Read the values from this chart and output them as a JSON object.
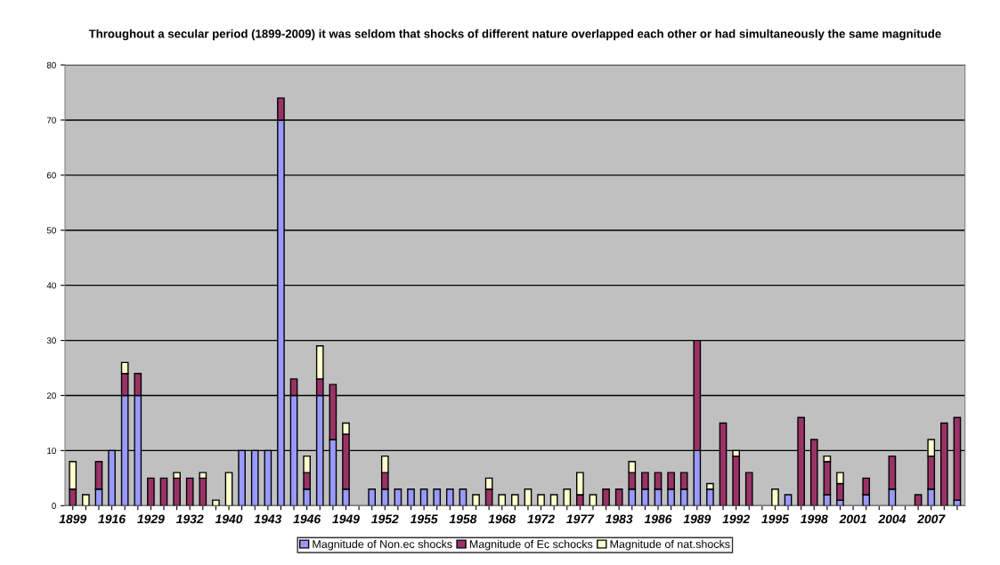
{
  "chart_data": {
    "type": "bar",
    "stacked": true,
    "title": "Throughout a secular period (1899-2009) it was seldom that shocks of different nature overlapped each other or had simultaneously the same magnitude",
    "categories": [
      "1899",
      null,
      null,
      "1916",
      null,
      null,
      "1929",
      null,
      null,
      "1932",
      null,
      null,
      "1940",
      null,
      null,
      "1943",
      null,
      null,
      "1946",
      null,
      null,
      "1949",
      null,
      null,
      "1952",
      null,
      null,
      "1955",
      null,
      null,
      "1958",
      null,
      null,
      "1968",
      null,
      null,
      "1972",
      null,
      null,
      "1977",
      null,
      null,
      "1983",
      null,
      null,
      "1986",
      null,
      null,
      "1989",
      null,
      null,
      "1992",
      null,
      null,
      "1995",
      null,
      null,
      "1998",
      null,
      null,
      "2001",
      null,
      null,
      "2004",
      null,
      null,
      "2007",
      null,
      null
    ],
    "series": [
      {
        "name": "Magnitude of Non.ec shocks",
        "color": "#9999ff",
        "values": [
          0,
          0,
          3,
          10,
          20,
          20,
          0,
          0,
          0,
          0,
          0,
          0,
          0,
          10,
          10,
          10,
          70,
          20,
          3,
          20,
          12,
          3,
          0,
          3,
          3,
          3,
          3,
          3,
          3,
          3,
          3,
          0,
          0,
          0,
          0,
          0,
          0,
          0,
          0,
          0,
          0,
          0,
          0,
          3,
          3,
          3,
          3,
          3,
          10,
          3,
          0,
          0,
          0,
          0,
          0,
          2,
          0,
          0,
          2,
          1,
          0,
          2,
          0,
          3,
          0,
          0,
          3,
          0,
          1
        ]
      },
      {
        "name": "Magnitude of Ec schocks",
        "color": "#993366",
        "values": [
          3,
          0,
          5,
          0,
          4,
          4,
          5,
          5,
          5,
          5,
          5,
          0,
          0,
          0,
          0,
          0,
          4,
          3,
          3,
          3,
          10,
          10,
          0,
          0,
          3,
          0,
          0,
          0,
          0,
          0,
          0,
          0,
          3,
          0,
          0,
          0,
          0,
          0,
          0,
          2,
          0,
          3,
          3,
          3,
          3,
          3,
          3,
          3,
          20,
          0,
          15,
          9,
          6,
          0,
          0,
          0,
          16,
          12,
          6,
          3,
          0,
          3,
          0,
          6,
          0,
          2,
          6,
          15,
          15
        ]
      },
      {
        "name": "Magnitude of nat.shocks",
        "color": "#ffffcc",
        "values": [
          5,
          2,
          0,
          0,
          2,
          0,
          0,
          0,
          1,
          0,
          1,
          1,
          6,
          0,
          0,
          0,
          0,
          0,
          3,
          6,
          0,
          2,
          0,
          0,
          3,
          0,
          0,
          0,
          0,
          0,
          0,
          2,
          2,
          2,
          2,
          3,
          2,
          2,
          3,
          4,
          2,
          0,
          0,
          2,
          0,
          0,
          0,
          0,
          0,
          1,
          0,
          1,
          0,
          0,
          3,
          0,
          0,
          0,
          1,
          2,
          0,
          0,
          0,
          0,
          0,
          0,
          3,
          0,
          0
        ]
      }
    ],
    "ylim": [
      0,
      80
    ],
    "yticks": [
      0,
      10,
      20,
      30,
      40,
      50,
      60,
      70,
      80
    ],
    "grid": "y",
    "legend": "bottom"
  }
}
